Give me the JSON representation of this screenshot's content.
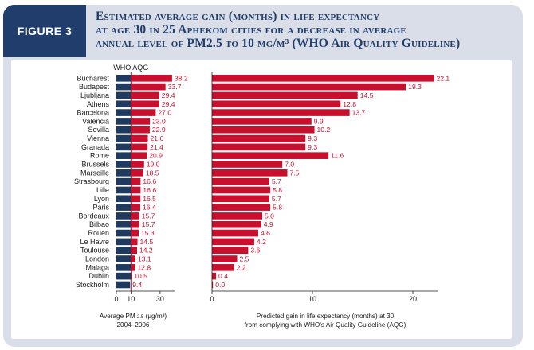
{
  "figure_label": "FIGURE 3",
  "title_lines": [
    "Estimated average gain (months) in life expectancy",
    "at age 30 in 25 Aphekom cities for a decrease in average",
    "annual level of PM2.5 to 10 µg/m³ (WHO Air Quality Guideline)"
  ],
  "colors": {
    "header_bg": "#d9dee9",
    "label_bg": "#203d6c",
    "title_text": "#203d6c",
    "pm_bar": "#1e3a5f",
    "excess_bar": "#c8102e",
    "value_text": "#c8102e"
  },
  "chart_data": [
    {
      "type": "bar",
      "orientation": "horizontal",
      "stacked": true,
      "categories": [
        "Bucharest",
        "Budapest",
        "Ljubljana",
        "Athens",
        "Barcelona",
        "Valencia",
        "Sevilla",
        "Vienna",
        "Granada",
        "Rome",
        "Brussels",
        "Marseille",
        "Strasbourg",
        "Lille",
        "Lyon",
        "Paris",
        "Bordeaux",
        "Bilbao",
        "Rouen",
        "Le Havre",
        "Toulouse",
        "London",
        "Malaga",
        "Dublin",
        "Stockholm"
      ],
      "values": [
        38.2,
        33.7,
        29.4,
        29.4,
        27.0,
        23.0,
        22.9,
        21.6,
        21.4,
        20.9,
        19.0,
        18.5,
        16.6,
        16.6,
        16.5,
        16.4,
        15.7,
        15.7,
        15.3,
        14.5,
        14.2,
        13.1,
        12.8,
        10.5,
        9.4
      ],
      "value_labels": [
        "38.2",
        "33.7",
        "29.4",
        "29.4",
        "27.0",
        "23.0",
        "22.9",
        "21.6",
        "21.4",
        "20.9",
        "19.0",
        "18.5",
        "16.6",
        "16.6",
        "16.5",
        "16.4",
        "15.7",
        "15.7",
        "15.3",
        "14.5",
        "14.2",
        "13.1",
        "12.8",
        "10.5",
        "9.4"
      ],
      "reference_line": {
        "value": 10,
        "label": "WHO AQG"
      },
      "xlim": [
        0,
        40
      ],
      "xticks": [
        "0",
        "10",
        "30"
      ],
      "xtick_values": [
        0,
        10,
        30
      ],
      "xlabel_line1": "Average PM",
      "xlabel_sub": "2.5",
      "xlabel_unit": "(µg/m³)",
      "xlabel_line2": "2004–2006"
    },
    {
      "type": "bar",
      "orientation": "horizontal",
      "categories": [
        "Bucharest",
        "Budapest",
        "Ljubljana",
        "Athens",
        "Barcelona",
        "Valencia",
        "Sevilla",
        "Vienna",
        "Granada",
        "Rome",
        "Brussels",
        "Marseille",
        "Strasbourg",
        "Lille",
        "Lyon",
        "Paris",
        "Bordeaux",
        "Bilbao",
        "Rouen",
        "Le Havre",
        "Toulouse",
        "London",
        "Malaga",
        "Dublin",
        "Stockholm"
      ],
      "values": [
        22.1,
        19.3,
        14.5,
        12.8,
        13.7,
        9.9,
        10.2,
        9.3,
        9.3,
        11.6,
        7.0,
        7.5,
        5.7,
        5.8,
        5.7,
        5.8,
        5.0,
        4.9,
        4.6,
        4.2,
        3.6,
        2.5,
        2.2,
        0.4,
        0.0
      ],
      "value_labels": [
        "22.1",
        "19.3",
        "14.5",
        "12.8",
        "13.7",
        "9.9",
        "10.2",
        "9.3",
        "9.3",
        "11.6",
        "7.0",
        "7.5",
        "5.7",
        "5.8",
        "5.7",
        "5.8",
        "5.0",
        "4.9",
        "4.6",
        "4.2",
        "3.6",
        "2.5",
        "2.2",
        "0.4",
        "0.0"
      ],
      "xlim": [
        0,
        22.5
      ],
      "xticks": [
        "0",
        "10",
        "20"
      ],
      "xtick_values": [
        0,
        10,
        20
      ],
      "xlabel_line1": "Predicted gain in life expectancy (months) at 30",
      "xlabel_line2": "from complying with WHO's Air Quality Guideline (AQG)"
    }
  ]
}
